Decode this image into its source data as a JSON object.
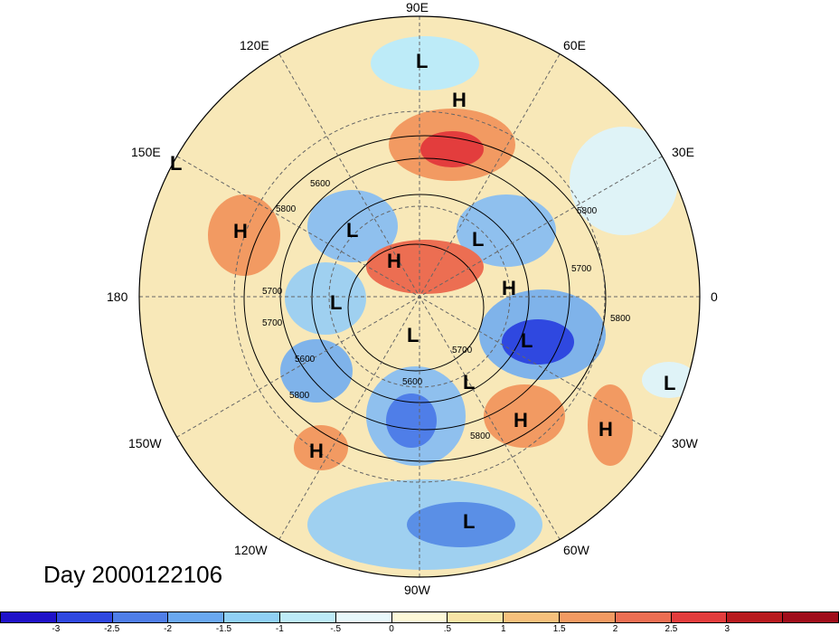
{
  "map": {
    "day_label": "Day 2000122106",
    "longitude_labels": {
      "n": "90E",
      "ne": "60E",
      "ene": "30E",
      "e": "0",
      "ese": "30W",
      "se": "60W",
      "s": "90W",
      "sw": "120W",
      "wsw": "150W",
      "w": "180",
      "wnw": "150E",
      "nw": "120E"
    },
    "contour_labels": [
      "5600",
      "5700",
      "5800",
      "5700",
      "5700",
      "5800",
      "5600",
      "5800",
      "5800",
      "5600",
      "5700",
      "5800"
    ],
    "pressure_centers": [
      {
        "label": "L"
      },
      {
        "label": "H"
      },
      {
        "label": "L"
      },
      {
        "label": "H"
      },
      {
        "label": "L"
      },
      {
        "label": "L"
      },
      {
        "label": "H"
      },
      {
        "label": "H"
      },
      {
        "label": "L"
      },
      {
        "label": "L"
      },
      {
        "label": "L"
      },
      {
        "label": "L"
      },
      {
        "label": "H"
      },
      {
        "label": "H"
      },
      {
        "label": "H"
      },
      {
        "label": "L"
      },
      {
        "label": "L"
      }
    ]
  },
  "colorbar": {
    "colors": [
      "#1f12c9",
      "#2f48e0",
      "#4f7ee8",
      "#6aa8f0",
      "#90d0f5",
      "#bdebf8",
      "#e8f8fb",
      "#fdf8d8",
      "#f8e4a6",
      "#f6c07c",
      "#f29a62",
      "#ec6e52",
      "#e33d3d",
      "#b81a1e",
      "#a00d1a"
    ],
    "ticks": [
      "-3",
      "-2.5",
      "-2",
      "-1.5",
      "-1",
      "-.5",
      "0",
      ".5",
      "1",
      "1.5",
      "2",
      "2.5",
      "3"
    ]
  }
}
